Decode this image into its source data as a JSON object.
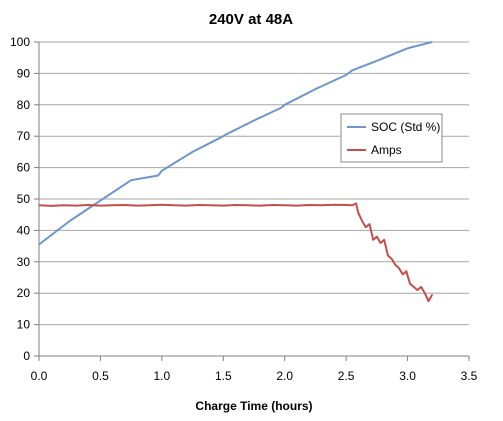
{
  "chart_data": {
    "type": "line",
    "title": "240V at 48A",
    "xlabel": "Charge Time (hours)",
    "ylabel": "",
    "xlim": [
      0,
      3.5
    ],
    "ylim": [
      0,
      100
    ],
    "xticks": [
      "0.0",
      "0.5",
      "1.0",
      "1.5",
      "2.0",
      "2.5",
      "3.0",
      "3.5"
    ],
    "yticks": [
      "0",
      "10",
      "20",
      "30",
      "40",
      "50",
      "60",
      "70",
      "80",
      "90",
      "100"
    ],
    "grid": "horizontal",
    "legend_position": "right",
    "series": [
      {
        "name": "SOC (Std %)",
        "color": "#6f95c8",
        "x": [
          0.0,
          0.25,
          0.5,
          0.75,
          0.97,
          1.0,
          1.25,
          1.5,
          1.52,
          1.75,
          1.97,
          2.0,
          2.25,
          2.5,
          2.55,
          2.75,
          3.0,
          3.2
        ],
        "y": [
          35.5,
          43,
          49.5,
          56,
          57.5,
          59,
          65,
          70,
          70.5,
          75,
          79,
          80,
          85,
          89.5,
          91,
          94,
          98,
          100
        ]
      },
      {
        "name": "Amps",
        "color": "#c0504d",
        "x": [
          0.0,
          0.1,
          0.2,
          0.3,
          0.4,
          0.5,
          0.6,
          0.7,
          0.8,
          0.9,
          1.0,
          1.1,
          1.2,
          1.3,
          1.4,
          1.5,
          1.6,
          1.7,
          1.8,
          1.9,
          2.0,
          2.1,
          2.2,
          2.3,
          2.4,
          2.5,
          2.55,
          2.58,
          2.6,
          2.63,
          2.66,
          2.69,
          2.72,
          2.75,
          2.78,
          2.81,
          2.84,
          2.87,
          2.9,
          2.93,
          2.96,
          2.99,
          3.02,
          3.05,
          3.08,
          3.11,
          3.14,
          3.17,
          3.2
        ],
        "y": [
          48,
          47.8,
          48,
          47.9,
          48.1,
          47.9,
          48,
          48.1,
          47.9,
          48,
          48.2,
          48,
          47.9,
          48.1,
          48,
          47.9,
          48.1,
          48,
          47.9,
          48.1,
          48,
          47.9,
          48.1,
          48,
          48.2,
          48.1,
          48,
          48.6,
          45.5,
          43,
          41,
          42,
          37,
          38,
          36,
          37,
          32,
          31,
          29,
          28,
          26,
          27,
          23,
          22,
          21,
          22,
          20,
          17.5,
          19.5
        ]
      }
    ]
  }
}
